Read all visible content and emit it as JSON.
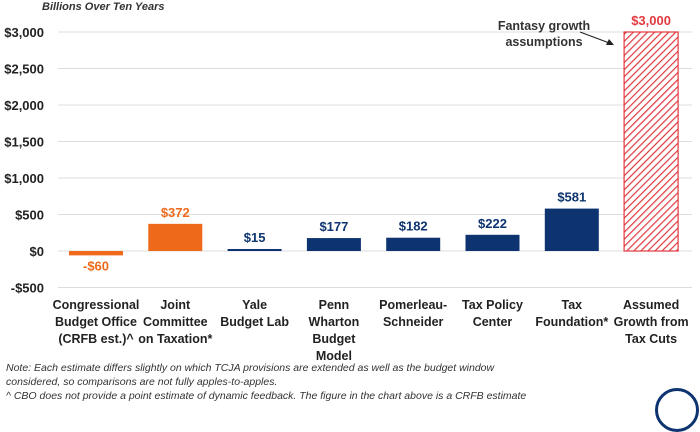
{
  "chart_data": {
    "type": "bar",
    "subtitle": "Billions Over Ten Years",
    "categories": [
      [
        "Congressional",
        "Budget Office",
        "(CRFB est.)^"
      ],
      [
        "Joint",
        "Committee",
        "on Taxation*"
      ],
      [
        "Yale",
        "Budget Lab"
      ],
      [
        "Penn",
        "Wharton",
        "Budget",
        "Model"
      ],
      [
        "Pomerleau-",
        "Schneider"
      ],
      [
        "Tax Policy",
        "Center"
      ],
      [
        "Tax",
        "Foundation*"
      ],
      [
        "Assumed",
        "Growth from",
        "Tax Cuts"
      ]
    ],
    "values": [
      -60,
      372,
      15,
      177,
      182,
      222,
      581,
      3000
    ],
    "value_labels": [
      "-$60",
      "$372",
      "$15",
      "$177",
      "$182",
      "$222",
      "$581",
      "$3,000"
    ],
    "bar_colors": [
      "#ee6a1a",
      "#ee6a1a",
      "#0d3470",
      "#0d3470",
      "#0d3470",
      "#0d3470",
      "#0d3470",
      "hatched-red"
    ],
    "colors": {
      "orange": "#ee6a1a",
      "navy": "#0d3470",
      "red": "#e0393e"
    },
    "ylim": [
      -500,
      3000
    ],
    "yticks": [
      -500,
      0,
      500,
      1000,
      1500,
      2000,
      2500,
      3000
    ],
    "ytick_labels": [
      "-$500",
      "$0",
      "$500",
      "$1,000",
      "$1,500",
      "$2,000",
      "$2,500",
      "$3,000"
    ],
    "grid": true,
    "annotation": [
      "Fantasy growth",
      "assumptions"
    ]
  },
  "notes": [
    "Note: Each estimate differs slightly on which TCJA provisions are extended as well as the budget window",
    "considered, so comparisons are not fully apples-to-apples.",
    "^ CBO does not provide a point estimate of dynamic feedback. The figure in the chart above is a CRFB estimate"
  ]
}
